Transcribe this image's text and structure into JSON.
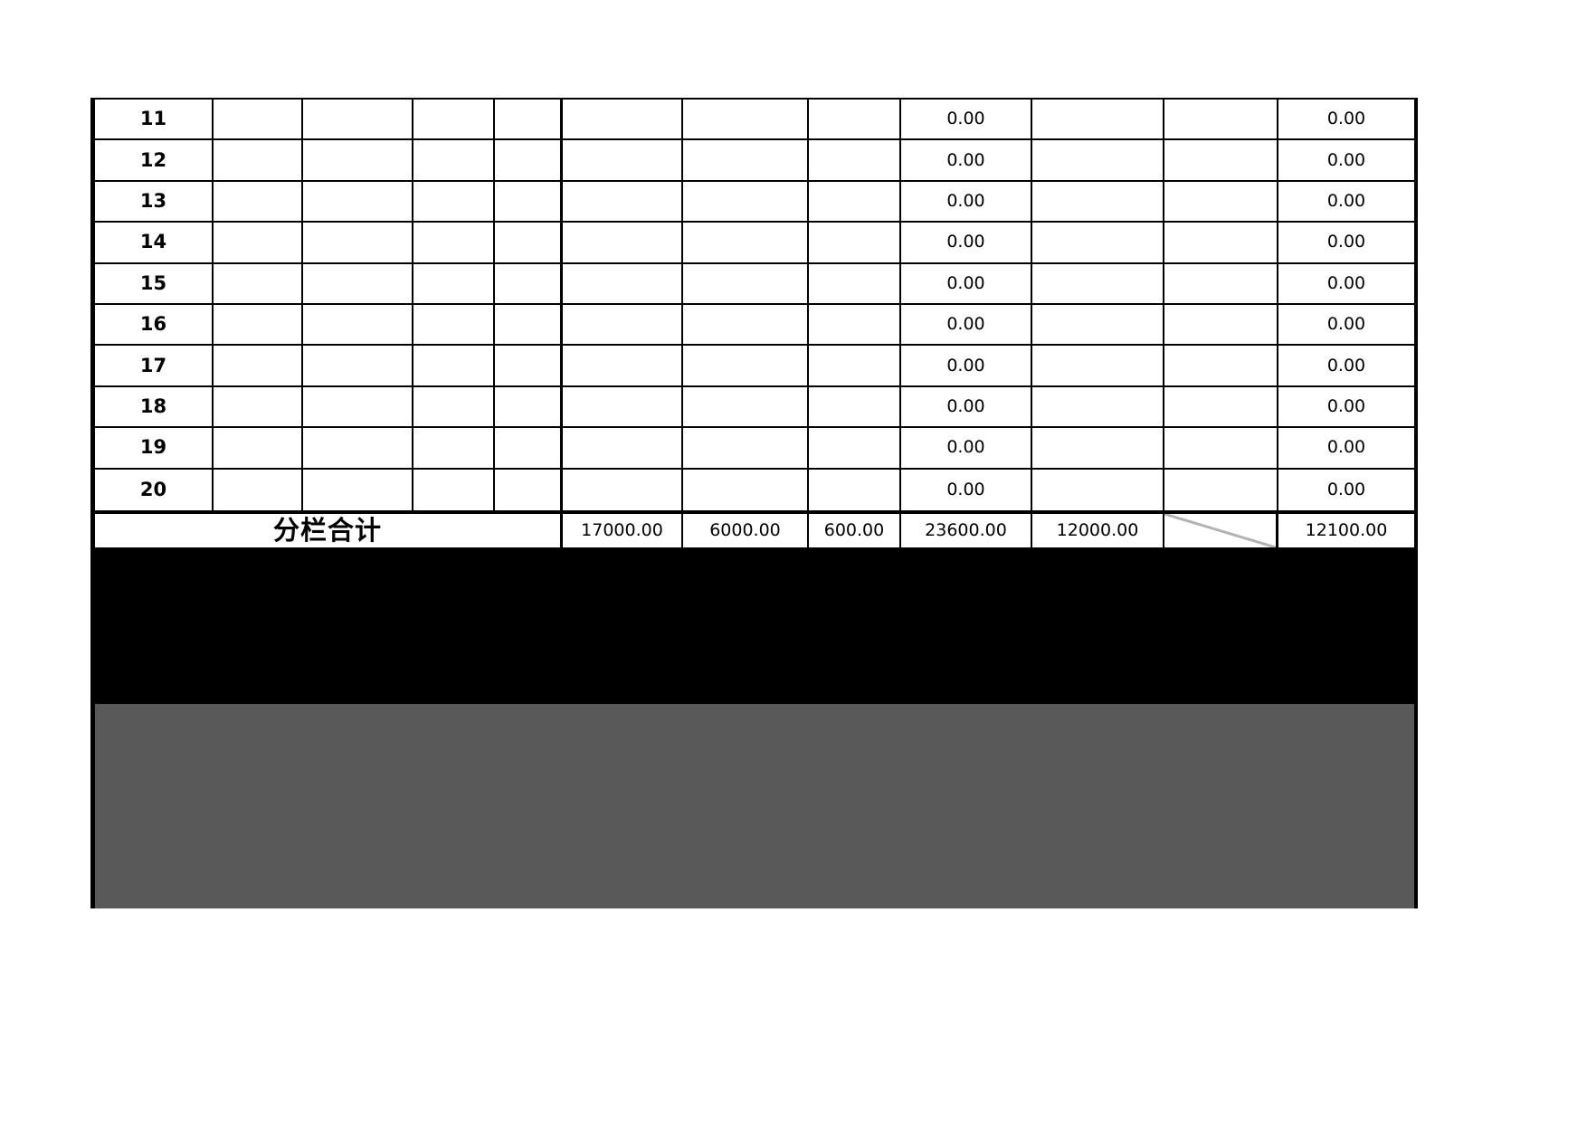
{
  "sheet": {
    "rows": [
      {
        "num": "11",
        "amount_a": "0.00",
        "amount_b": "0.00"
      },
      {
        "num": "12",
        "amount_a": "0.00",
        "amount_b": "0.00"
      },
      {
        "num": "13",
        "amount_a": "0.00",
        "amount_b": "0.00"
      },
      {
        "num": "14",
        "amount_a": "0.00",
        "amount_b": "0.00"
      },
      {
        "num": "15",
        "amount_a": "0.00",
        "amount_b": "0.00"
      },
      {
        "num": "16",
        "amount_a": "0.00",
        "amount_b": "0.00"
      },
      {
        "num": "17",
        "amount_a": "0.00",
        "amount_b": "0.00"
      },
      {
        "num": "18",
        "amount_a": "0.00",
        "amount_b": "0.00"
      },
      {
        "num": "19",
        "amount_a": "0.00",
        "amount_b": "0.00"
      },
      {
        "num": "20",
        "amount_a": "0.00",
        "amount_b": "0.00"
      }
    ],
    "totals": {
      "label": "分栏合计",
      "values": [
        "17000.00",
        "6000.00",
        "600.00",
        "23600.00",
        "12000.00",
        "12100.00"
      ]
    }
  },
  "colors": {
    "table_border": "#000000",
    "black_band": "#000000",
    "gray_band": "#595959",
    "diagonal_line": "#b3b3b3"
  }
}
